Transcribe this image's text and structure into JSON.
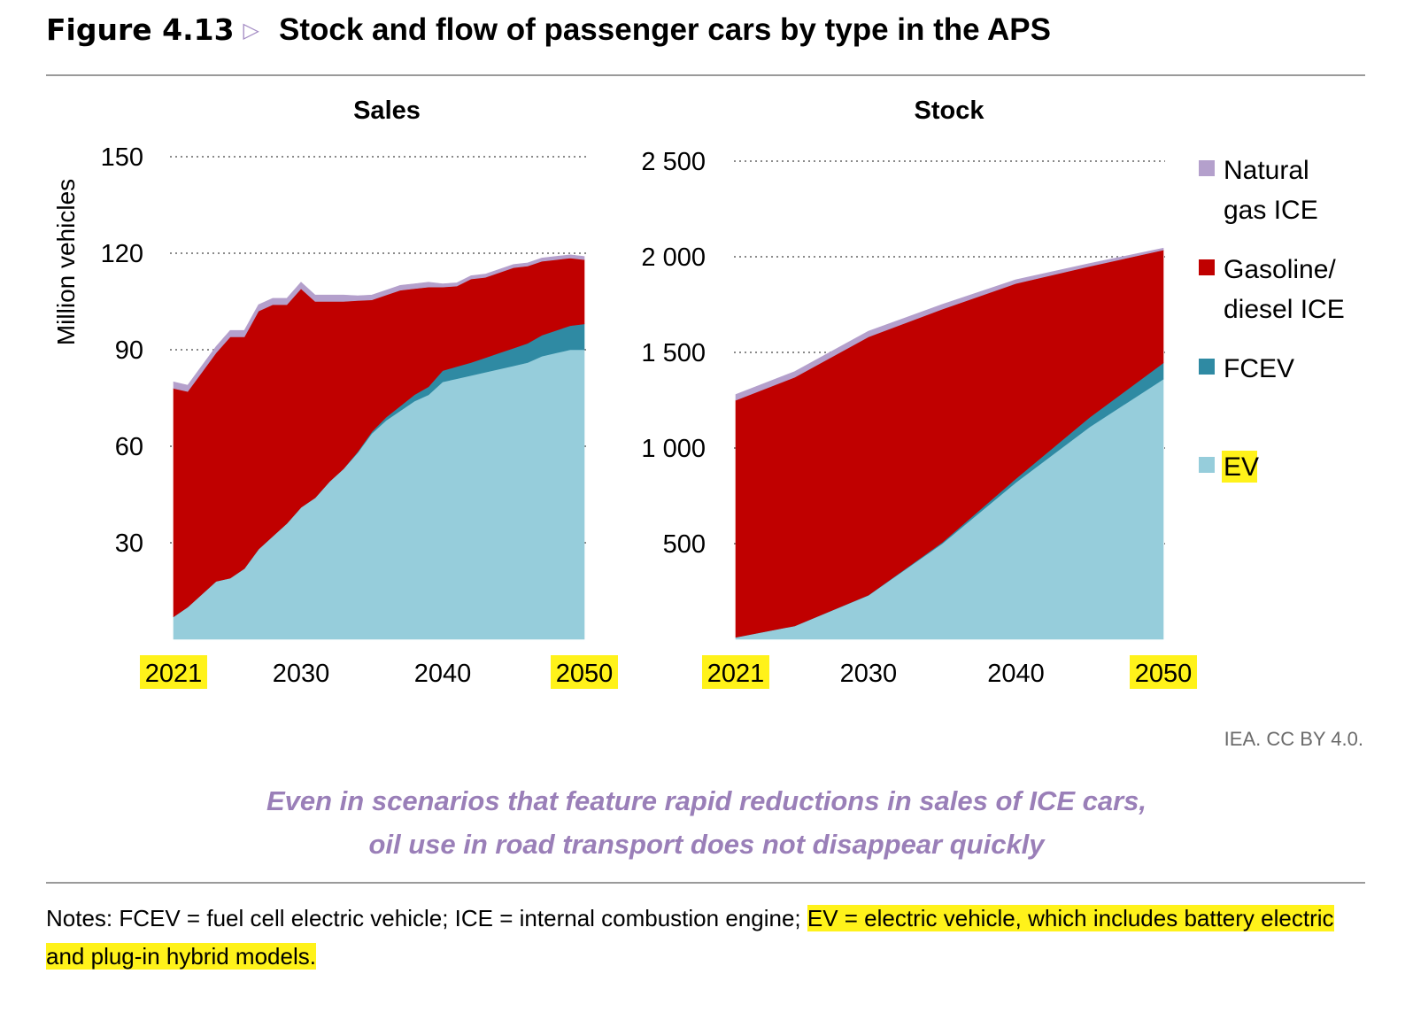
{
  "figure": {
    "number": "Figure 4.13",
    "title": "Stock and flow of passenger cars by type in the APS"
  },
  "credit": "IEA. CC BY 4.0.",
  "takeaway": {
    "line1": "Even in scenarios that feature rapid reductions in sales of ICE cars,",
    "line2": "oil use in road transport does not disappear quickly"
  },
  "notes": {
    "plain": "Notes: FCEV = fuel cell electric vehicle; ICE = internal combustion engine; ",
    "highlighted": "EV = electric vehicle, which includes battery electric and plug-in hybrid models."
  },
  "colors": {
    "ev": "#96cddb",
    "fcev": "#2f8aa3",
    "gasoline_diesel_ice": "#c00000",
    "natural_gas_ice": "#b4a0cc",
    "highlight": "#fff21a"
  },
  "chart_data": [
    {
      "type": "area",
      "stacked": true,
      "title": "Sales",
      "ylabel": "Million vehicles",
      "ylim": [
        0,
        150
      ],
      "yticks": [
        30,
        60,
        90,
        120,
        150
      ],
      "xlim": [
        2021,
        2050
      ],
      "xticks": [
        2021,
        2030,
        2040,
        2050
      ],
      "highlighted_xticks": [
        2021,
        2050
      ],
      "grid": "horizontal dotted",
      "x": [
        2021,
        2022,
        2023,
        2024,
        2025,
        2026,
        2027,
        2028,
        2029,
        2030,
        2031,
        2032,
        2033,
        2034,
        2035,
        2036,
        2037,
        2038,
        2039,
        2040,
        2041,
        2042,
        2043,
        2044,
        2045,
        2046,
        2047,
        2048,
        2049,
        2050
      ],
      "series": [
        {
          "name": "EV",
          "values": [
            7,
            10,
            14,
            18,
            19,
            22,
            28,
            32,
            36,
            41,
            44,
            49,
            53,
            58,
            64,
            68,
            71,
            74,
            76,
            80,
            81,
            82,
            83,
            84,
            85,
            86,
            88,
            89,
            90,
            90
          ]
        },
        {
          "name": "FCEV",
          "values": [
            0,
            0,
            0,
            0,
            0,
            0,
            0,
            0,
            0,
            0,
            0,
            0,
            0,
            0.3,
            0.5,
            1,
            1.5,
            2,
            2.5,
            3.5,
            3.8,
            4,
            4.5,
            5,
            5.5,
            6,
            6.5,
            7,
            7.5,
            8
          ]
        },
        {
          "name": "Gasoline/\ndiesel ICE",
          "values": [
            71,
            67,
            69,
            71,
            75,
            72,
            74,
            72,
            68,
            68,
            61,
            56,
            52,
            47,
            41,
            38,
            36,
            33,
            31,
            26,
            25,
            26,
            25,
            25,
            25,
            24,
            23,
            22,
            21,
            20
          ]
        },
        {
          "name": "Natural\ngas ICE",
          "values": [
            2,
            2,
            2,
            2,
            2,
            2,
            2,
            2,
            2,
            2,
            2,
            2,
            2,
            1.5,
            1.5,
            1.5,
            1.5,
            1.5,
            1.5,
            1,
            1,
            1,
            1,
            1,
            1,
            1,
            1,
            1,
            1,
            1
          ]
        }
      ]
    },
    {
      "type": "area",
      "stacked": true,
      "title": "Stock",
      "ylim": [
        0,
        2500
      ],
      "yticks": [
        500,
        1000,
        1500,
        2000,
        2500
      ],
      "ytick_labels": [
        "500",
        "1 000",
        "1 500",
        "2 000",
        "2 500"
      ],
      "xlim": [
        2021,
        2050
      ],
      "xticks": [
        2021,
        2030,
        2040,
        2050
      ],
      "highlighted_xticks": [
        2021,
        2050
      ],
      "grid": "horizontal dotted",
      "legend": "right",
      "x": [
        2021,
        2025,
        2030,
        2035,
        2040,
        2045,
        2050
      ],
      "series": [
        {
          "name": "EV",
          "values": [
            10,
            70,
            230,
            500,
            820,
            1110,
            1360
          ]
        },
        {
          "name": "FCEV",
          "values": [
            0,
            0,
            1,
            6,
            20,
            50,
            85
          ]
        },
        {
          "name": "Gasoline/\ndiesel ICE",
          "values": [
            1240,
            1300,
            1350,
            1220,
            1020,
            790,
            590
          ]
        },
        {
          "name": "Natural\ngas ICE",
          "values": [
            30,
            30,
            30,
            25,
            20,
            15,
            10
          ]
        }
      ]
    }
  ]
}
